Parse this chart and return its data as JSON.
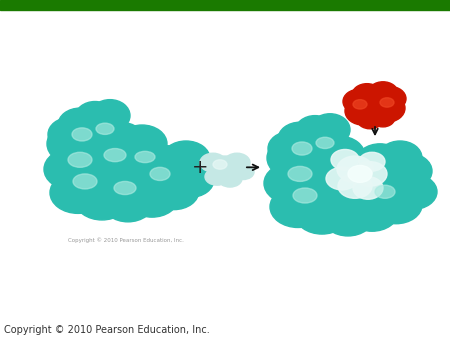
{
  "background_color": "#ffffff",
  "top_bar_color": "#1a7a00",
  "copyright_text": "Copyright © 2010 Pearson Education, Inc.",
  "copyright_small_text": "Copyright © 2010 Pearson Education, Inc.",
  "enzyme_color": "#2bbdaf",
  "enzyme_highlight": "#aaeae0",
  "enzyme_dark": "#1a9080",
  "active_site_color": "#d8f5f0",
  "substrate_red": "#cc1500",
  "substrate_red_light": "#ee4422",
  "small_mol_color": "#c5e8e5",
  "small_mol_light": "#e8f8f6",
  "plus_sign": "+",
  "arrow_color": "#111111",
  "figsize": [
    4.5,
    3.38
  ],
  "dpi": 100
}
